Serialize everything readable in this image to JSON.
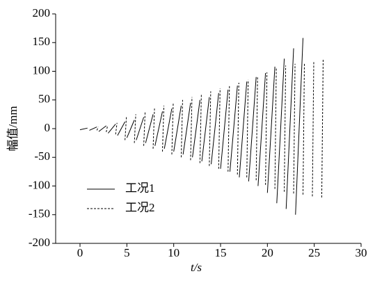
{
  "chart_data": {
    "type": "line",
    "xlabel": "t/s",
    "ylabel": "幅值/mm",
    "xlim": [
      -2.6,
      30
    ],
    "xticks": [
      0,
      5,
      10,
      15,
      20,
      25,
      30
    ],
    "ylim": [
      -200,
      200
    ],
    "yticks": [
      -200,
      -150,
      -100,
      -50,
      0,
      50,
      100,
      150,
      200
    ],
    "legend": "lower left",
    "series": [
      {
        "name": "工况1",
        "color": "#000000",
        "dash": false,
        "x": [
          0,
          0.8,
          null,
          1,
          1.8,
          null,
          2,
          2.8,
          null,
          3,
          3.8,
          null,
          4,
          4.8,
          null,
          5,
          5.8,
          null,
          6,
          6.8,
          null,
          7,
          7.8,
          null,
          8,
          8.8,
          null,
          9,
          9.8,
          null,
          10,
          10.8,
          null,
          11,
          11.8,
          null,
          12,
          12.8,
          null,
          13,
          13.8,
          null,
          14,
          14.8,
          null,
          15,
          15.8,
          null,
          16,
          16.8,
          null,
          17,
          17.8,
          null,
          18,
          18.8,
          null,
          19,
          19.8,
          null,
          20,
          20.8,
          null,
          21,
          21.8,
          null,
          22,
          22.8,
          null,
          23,
          23.8
        ],
        "values": [
          -2,
          1,
          null,
          -3,
          3,
          null,
          -5,
          5,
          null,
          -8,
          8,
          null,
          -12,
          12,
          null,
          -16,
          15,
          null,
          -20,
          20,
          null,
          -25,
          25,
          null,
          -30,
          30,
          null,
          -35,
          35,
          null,
          -40,
          40,
          null,
          -45,
          45,
          null,
          -50,
          50,
          null,
          -57,
          55,
          null,
          -62,
          62,
          null,
          -70,
          68,
          null,
          -75,
          75,
          null,
          -85,
          82,
          null,
          -92,
          90,
          null,
          -100,
          97,
          null,
          -112,
          108,
          null,
          -130,
          122,
          null,
          -140,
          140,
          null,
          -150,
          158
        ]
      },
      {
        "name": "工况2",
        "color": "#000000",
        "dash": true,
        "x": [
          1.8,
          1.95,
          null,
          2.8,
          2.95,
          null,
          3.8,
          3.95,
          null,
          4.8,
          4.95,
          null,
          5.8,
          5.95,
          null,
          6.8,
          6.95,
          null,
          7.8,
          7.95,
          null,
          8.8,
          8.95,
          null,
          9.8,
          9.95,
          null,
          10.8,
          10.95,
          null,
          11.8,
          11.95,
          null,
          12.8,
          12.95,
          null,
          13.8,
          13.95,
          null,
          14.8,
          14.95,
          null,
          15.8,
          15.95,
          null,
          16.8,
          16.95,
          null,
          17.8,
          17.95,
          null,
          18.8,
          18.95,
          null,
          19.8,
          19.95,
          null,
          20.8,
          20.95,
          null,
          21.8,
          21.95,
          null,
          22.8,
          22.95,
          null,
          23.8,
          23.95,
          null,
          24.8,
          24.95,
          null,
          25.8,
          25.95
        ],
        "values": [
          -3,
          3,
          null,
          -6,
          6,
          null,
          -10,
          10,
          null,
          -20,
          20,
          null,
          -25,
          25,
          null,
          -30,
          30,
          null,
          -35,
          35,
          null,
          -40,
          40,
          null,
          -45,
          45,
          null,
          -50,
          50,
          null,
          -55,
          55,
          null,
          -60,
          60,
          null,
          -65,
          65,
          null,
          -70,
          70,
          null,
          -75,
          75,
          null,
          -80,
          80,
          null,
          -85,
          85,
          null,
          -90,
          90,
          null,
          -98,
          98,
          null,
          -105,
          105,
          null,
          -110,
          110,
          null,
          -113,
          113,
          null,
          -115,
          115,
          null,
          -118,
          118,
          null,
          -120,
          120
        ]
      }
    ]
  }
}
